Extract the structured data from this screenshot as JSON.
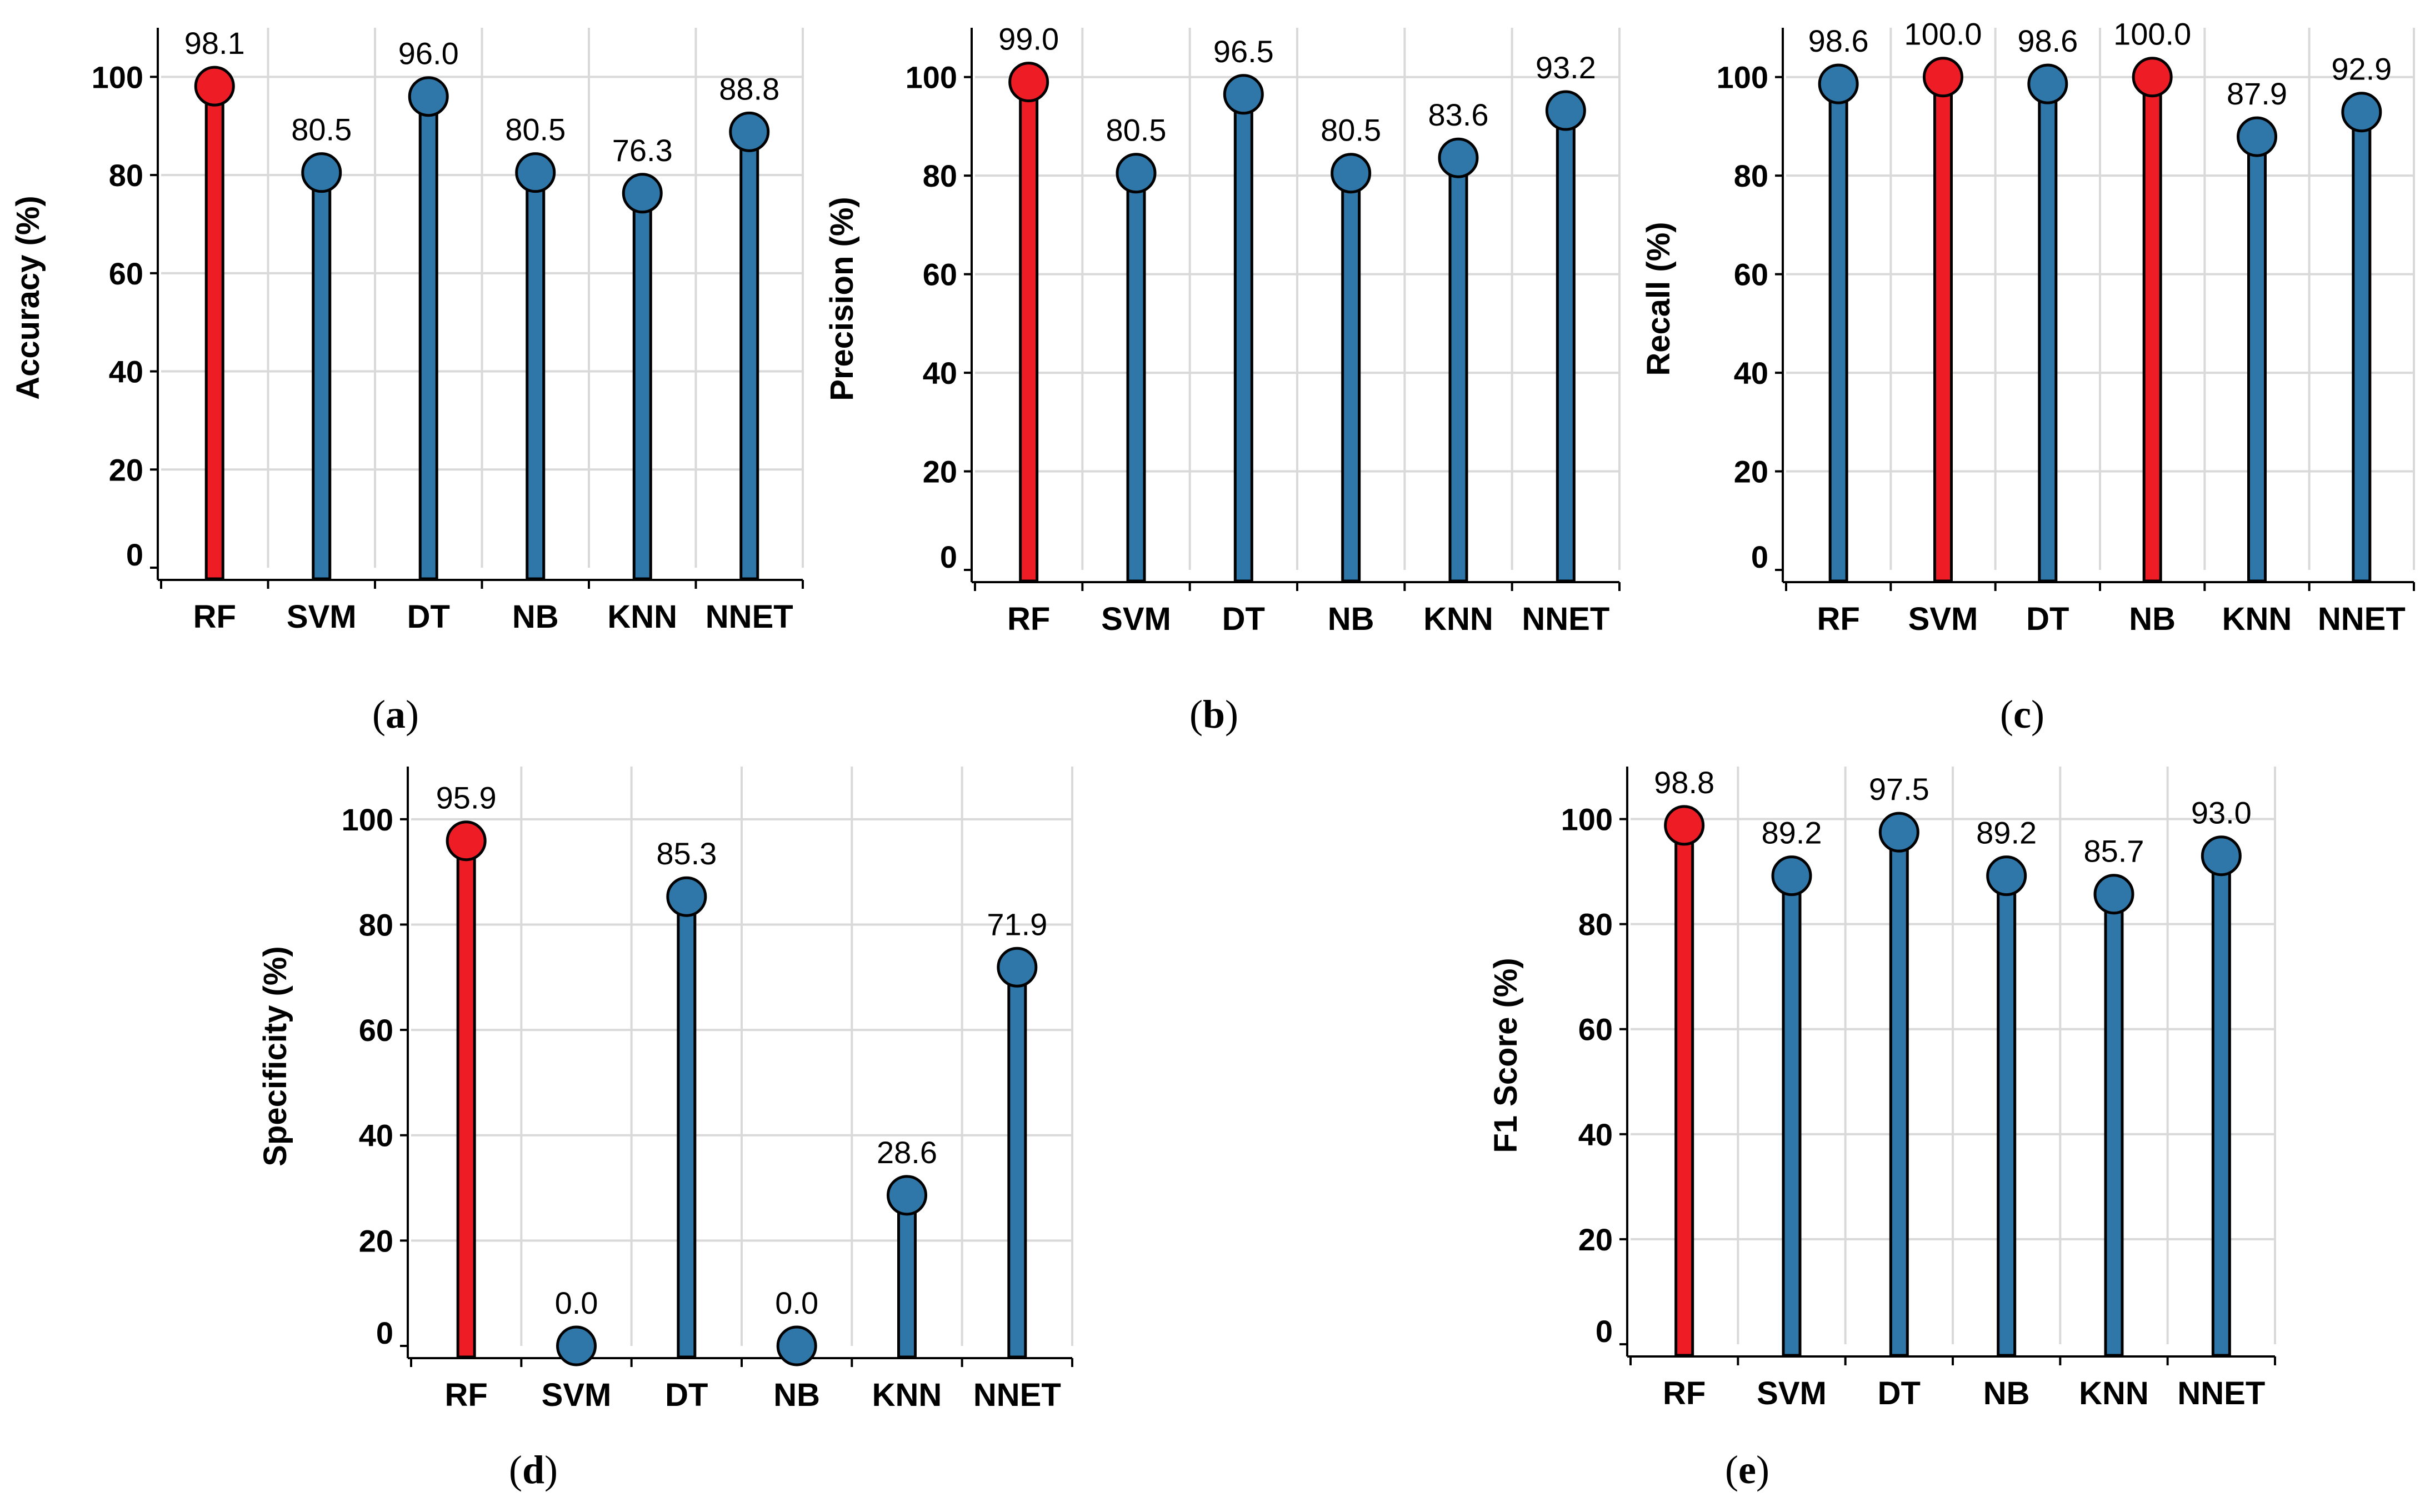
{
  "figure": {
    "colors": {
      "highlight": "#ee1c25",
      "default": "#2e77a8",
      "grid": "#d9d9d9",
      "axis": "#000000"
    }
  },
  "chart_data": [
    {
      "id": "a",
      "caption": "a",
      "type": "lollipop",
      "categories": [
        "RF",
        "SVM",
        "DT",
        "NB",
        "KNN",
        "NNET"
      ],
      "values": [
        98.1,
        80.5,
        96.0,
        80.5,
        76.3,
        88.8
      ],
      "value_labels": [
        "98.1",
        "80.5",
        "96.0",
        "80.5",
        "76.3",
        "88.8"
      ],
      "highlight": [
        true,
        false,
        false,
        false,
        false,
        false
      ],
      "ylabel": "Accuracy (%)",
      "ylim": [
        0,
        110
      ],
      "yticks": [
        0,
        20,
        40,
        60,
        80,
        100
      ],
      "ytick_labels": [
        "0",
        "20",
        "40",
        "60",
        "80",
        "100"
      ]
    },
    {
      "id": "b",
      "caption": "b",
      "type": "lollipop",
      "categories": [
        "RF",
        "SVM",
        "DT",
        "NB",
        "KNN",
        "NNET"
      ],
      "values": [
        99.0,
        80.5,
        96.5,
        80.5,
        83.6,
        93.2
      ],
      "value_labels": [
        "99.0",
        "80.5",
        "96.5",
        "80.5",
        "83.6",
        "93.2"
      ],
      "highlight": [
        true,
        false,
        false,
        false,
        false,
        false
      ],
      "ylabel": "Precision (%)",
      "ylim": [
        0,
        110
      ],
      "yticks": [
        0,
        20,
        40,
        60,
        80,
        100
      ],
      "ytick_labels": [
        "0",
        "20",
        "40",
        "60",
        "80",
        "100"
      ]
    },
    {
      "id": "c",
      "caption": "c",
      "type": "lollipop",
      "categories": [
        "RF",
        "SVM",
        "DT",
        "NB",
        "KNN",
        "NNET"
      ],
      "values": [
        98.6,
        100.0,
        98.6,
        100.0,
        87.9,
        92.9
      ],
      "value_labels": [
        "98.6",
        "100.0",
        "98.6",
        "100.0",
        "87.9",
        "92.9"
      ],
      "highlight": [
        false,
        true,
        false,
        true,
        false,
        false
      ],
      "ylabel": "Recall (%)",
      "ylim": [
        0,
        110
      ],
      "yticks": [
        0,
        20,
        40,
        60,
        80,
        100
      ],
      "ytick_labels": [
        "0",
        "20",
        "40",
        "60",
        "80",
        "100"
      ]
    },
    {
      "id": "d",
      "caption": "d",
      "type": "lollipop",
      "categories": [
        "RF",
        "SVM",
        "DT",
        "NB",
        "KNN",
        "NNET"
      ],
      "values": [
        95.9,
        0.0,
        85.3,
        0.0,
        28.6,
        71.9
      ],
      "value_labels": [
        "95.9",
        "0.0",
        "85.3",
        "0.0",
        "28.6",
        "71.9"
      ],
      "highlight": [
        true,
        false,
        false,
        false,
        false,
        false
      ],
      "ylabel": "Specificity (%)",
      "ylim": [
        0,
        110
      ],
      "yticks": [
        0,
        20,
        40,
        60,
        80,
        100
      ],
      "ytick_labels": [
        "0",
        "20",
        "40",
        "60",
        "80",
        "100"
      ]
    },
    {
      "id": "e",
      "caption": "e",
      "type": "lollipop",
      "categories": [
        "RF",
        "SVM",
        "DT",
        "NB",
        "KNN",
        "NNET"
      ],
      "values": [
        98.8,
        89.2,
        97.5,
        89.2,
        85.7,
        93.0
      ],
      "value_labels": [
        "98.8",
        "89.2",
        "97.5",
        "89.2",
        "85.7",
        "93.0"
      ],
      "highlight": [
        true,
        false,
        false,
        false,
        false,
        false
      ],
      "ylabel": "F1 Score (%)",
      "ylim": [
        0,
        110
      ],
      "yticks": [
        0,
        20,
        40,
        60,
        80,
        100
      ],
      "ytick_labels": [
        "0",
        "20",
        "40",
        "60",
        "80",
        "100"
      ]
    }
  ]
}
